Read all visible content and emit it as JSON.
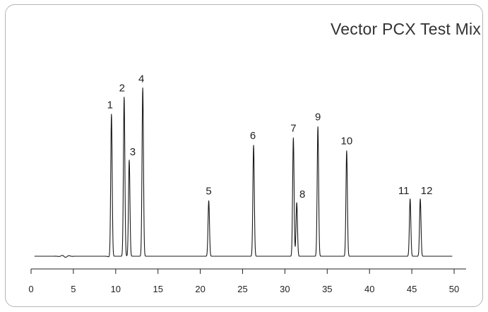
{
  "chart_data": {
    "type": "line",
    "title": "Vector PCX Test Mix",
    "xlabel": "",
    "ylabel": "",
    "xlim": [
      0,
      51
    ],
    "ylim": [
      0,
      100
    ],
    "x_ticks": [
      0,
      5,
      10,
      15,
      20,
      25,
      30,
      35,
      40,
      45,
      50
    ],
    "grid": false,
    "baseline": 0,
    "series": [
      {
        "peaks": [
          {
            "label": "1",
            "x": 9.5,
            "y": 77
          },
          {
            "label": "2",
            "x": 11.0,
            "y": 86
          },
          {
            "label": "3",
            "x": 11.6,
            "y": 52
          },
          {
            "label": "4",
            "x": 13.2,
            "y": 91
          },
          {
            "label": "5",
            "x": 21.0,
            "y": 30
          },
          {
            "label": "6",
            "x": 26.3,
            "y": 60
          },
          {
            "label": "7",
            "x": 31.0,
            "y": 64
          },
          {
            "label": "8",
            "x": 31.4,
            "y": 29
          },
          {
            "label": "9",
            "x": 33.9,
            "y": 70
          },
          {
            "label": "10",
            "x": 37.3,
            "y": 57
          },
          {
            "label": "11",
            "x": 44.8,
            "y": 31
          },
          {
            "label": "12",
            "x": 46.0,
            "y": 31
          }
        ]
      }
    ]
  }
}
